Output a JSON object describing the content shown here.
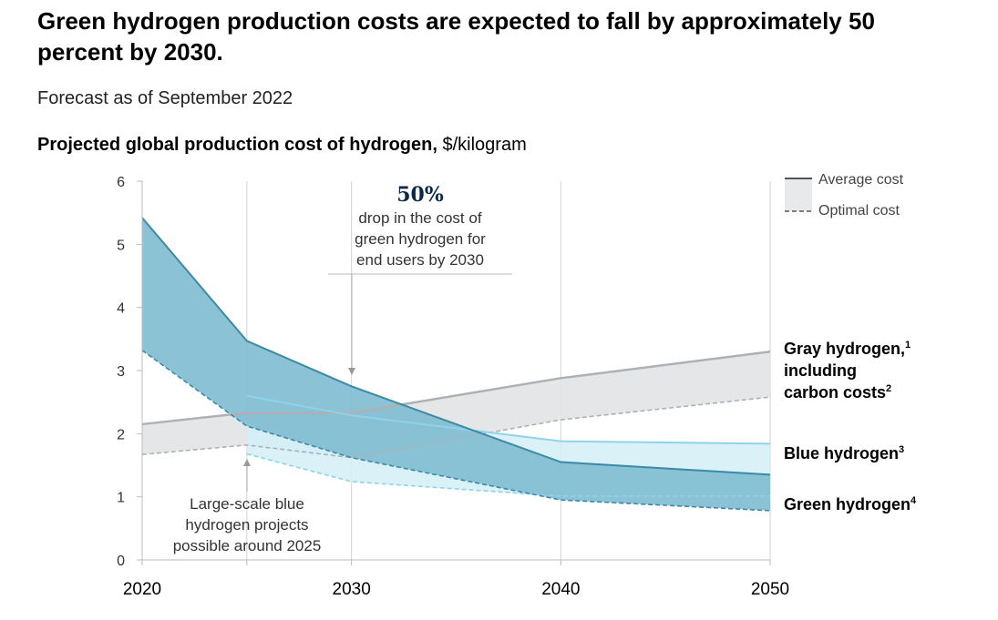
{
  "title": "Green hydrogen production costs are expected to fall by approximately 50 percent by 2030.",
  "subtitle": "Forecast as of September 2022",
  "chart_heading_bold": "Projected global production cost of hydrogen,",
  "chart_heading_unit": "$/kilogram",
  "colors": {
    "green_fill": "#7fbbd0",
    "green_line": "#3b8aa6",
    "blue_fill": "#d4eef7",
    "blue_line": "#8fd3ea",
    "gray_fill": "#e1e3e5",
    "gray_line": "#aeb1b4"
  },
  "chart_data": {
    "type": "area",
    "ylim": [
      0,
      6
    ],
    "yticks": [
      "0",
      "1",
      "2",
      "3",
      "4",
      "5",
      "6"
    ],
    "xticks": [
      "2020",
      "2030",
      "2040",
      "2050"
    ],
    "x_ticks_values": [
      2020,
      2025,
      2030,
      2040,
      2050
    ],
    "series": [
      {
        "name": "Gray hydrogen",
        "label": "Gray hydrogen,",
        "label_line2": "including",
        "label_line3": "carbon costs",
        "sup1": "1",
        "sup2": "2",
        "average": [
          [
            2020,
            2.15
          ],
          [
            2025,
            2.33
          ],
          [
            2030,
            2.33
          ],
          [
            2040,
            2.88
          ],
          [
            2050,
            3.3
          ]
        ],
        "optimal": [
          [
            2020,
            1.67
          ],
          [
            2025,
            1.82
          ],
          [
            2030,
            1.62
          ],
          [
            2040,
            2.22
          ],
          [
            2050,
            2.58
          ]
        ]
      },
      {
        "name": "Blue hydrogen",
        "label": "Blue hydrogen",
        "sup": "3",
        "average": [
          [
            2025,
            2.6
          ],
          [
            2030,
            2.29
          ],
          [
            2040,
            1.88
          ],
          [
            2050,
            1.84
          ]
        ],
        "optimal": [
          [
            2025,
            1.68
          ],
          [
            2030,
            1.24
          ],
          [
            2040,
            1.01
          ],
          [
            2050,
            1.01
          ]
        ]
      },
      {
        "name": "Green hydrogen",
        "label": "Green hydrogen",
        "sup": "4",
        "average": [
          [
            2020,
            5.42
          ],
          [
            2025,
            3.47
          ],
          [
            2030,
            2.75
          ],
          [
            2040,
            1.55
          ],
          [
            2050,
            1.35
          ]
        ],
        "optimal": [
          [
            2020,
            3.32
          ],
          [
            2025,
            2.12
          ],
          [
            2030,
            1.62
          ],
          [
            2040,
            0.95
          ],
          [
            2050,
            0.78
          ]
        ]
      }
    ],
    "legend": {
      "average": "Average cost",
      "optimal": "Optimal cost"
    },
    "annotations": {
      "pct": "50%",
      "pct_line1": "drop in the cost of",
      "pct_line2": "green hydrogen for",
      "pct_line3": "end users by 2030",
      "blue_line1": "Large-scale blue",
      "blue_line2": "hydrogen projects",
      "blue_line3": "possible around 2025"
    }
  }
}
